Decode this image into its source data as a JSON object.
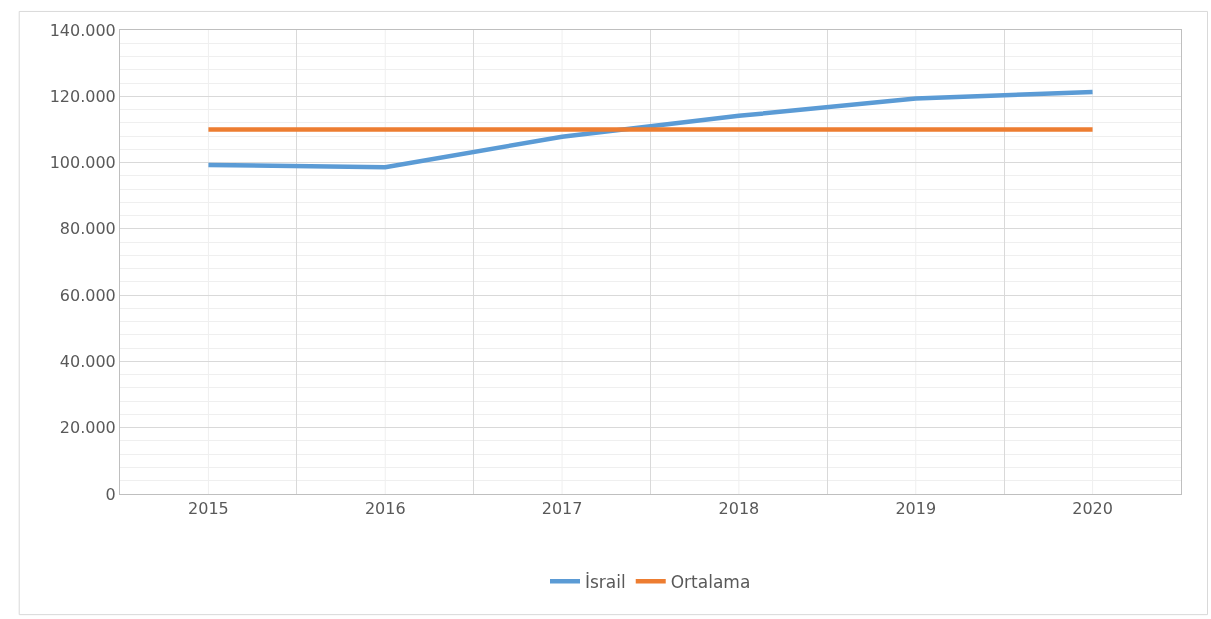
{
  "chart_data": {
    "type": "line",
    "categories": [
      "2015",
      "2016",
      "2017",
      "2018",
      "2019",
      "2020"
    ],
    "series": [
      {
        "name": "İsrail",
        "color": "#5b9bd5",
        "values": [
          99300,
          98600,
          107800,
          114100,
          119300,
          121300
        ]
      },
      {
        "name": "Ortalama",
        "color": "#ed7d31",
        "values": [
          110000,
          110000,
          110000,
          110000,
          110000,
          110000
        ]
      }
    ],
    "ylim": [
      0,
      140000
    ],
    "yticks": [
      0,
      {
        "value": 20000,
        "label": "20.000"
      },
      {
        "value": 40000,
        "label": "40.000"
      },
      {
        "value": 60000,
        "label": "60.000"
      },
      {
        "value": 80000,
        "label": "80.000"
      },
      {
        "value": 100000,
        "label": "100.000"
      },
      {
        "value": 120000,
        "label": "120.000"
      },
      {
        "value": 140000,
        "label": "140.000"
      }
    ],
    "grid": true,
    "legend": "bottom",
    "marker": "none",
    "line_style": "solid"
  }
}
